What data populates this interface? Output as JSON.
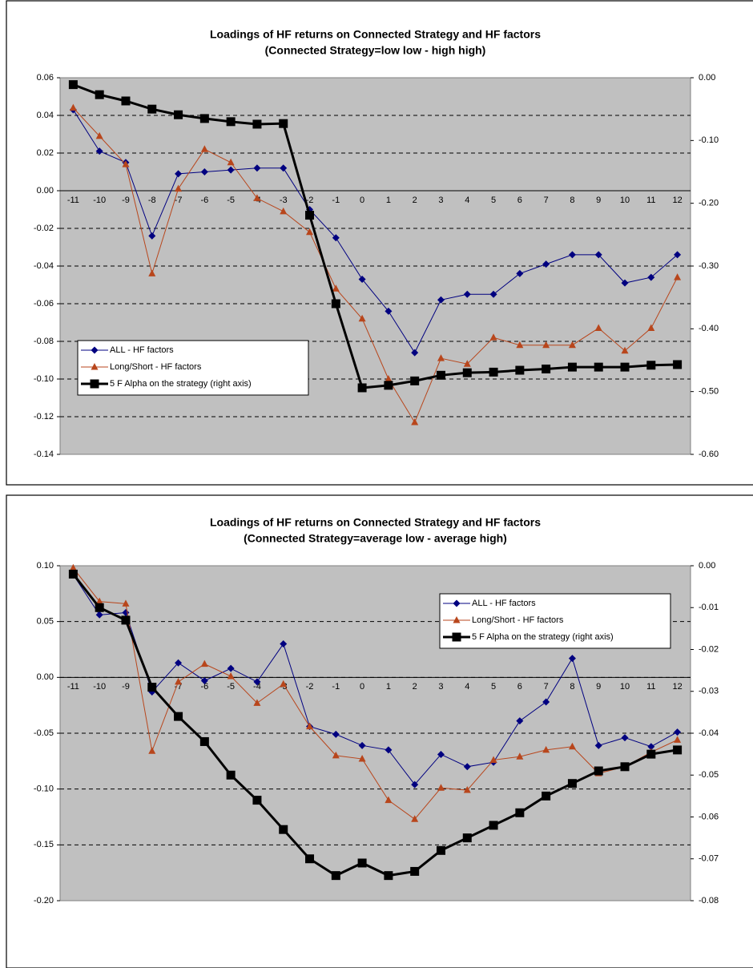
{
  "chart_data": [
    {
      "type": "line",
      "title": "Loadings of HF returns on Connected Strategy and HF factors",
      "subtitle": "(Connected Strategy=low low - high high)",
      "categories": [
        "-11",
        "-10",
        "-9",
        "-8",
        "-7",
        "-6",
        "-5",
        "-4",
        "-3",
        "-2",
        "-1",
        "0",
        "1",
        "2",
        "3",
        "4",
        "5",
        "6",
        "7",
        "8",
        "9",
        "10",
        "11",
        "12"
      ],
      "series": [
        {
          "name": "ALL - HF factors",
          "color": "#000080",
          "marker": "diamond",
          "values": [
            0.043,
            0.021,
            0.015,
            -0.024,
            0.009,
            0.01,
            0.011,
            0.012,
            0.012,
            -0.01,
            -0.025,
            -0.047,
            -0.064,
            -0.086,
            -0.058,
            -0.055,
            -0.055,
            -0.044,
            -0.039,
            -0.034,
            -0.034,
            -0.049,
            -0.046,
            -0.034
          ]
        },
        {
          "name": "Long/Short - HF factors",
          "color": "#b8461c",
          "marker": "triangle",
          "values": [
            0.044,
            0.029,
            0.014,
            -0.044,
            0.001,
            0.022,
            0.015,
            -0.004,
            -0.011,
            -0.022,
            -0.052,
            -0.068,
            -0.1,
            -0.123,
            -0.089,
            -0.092,
            -0.078,
            -0.082,
            -0.082,
            -0.082,
            -0.073,
            -0.085,
            -0.073,
            -0.046
          ]
        },
        {
          "name": "5 F Alpha on the strategy (right axis)",
          "color": "#000000",
          "marker": "square",
          "axis": "y2",
          "values": [
            -0.011,
            -0.027,
            -0.037,
            -0.05,
            -0.059,
            -0.065,
            -0.07,
            -0.074,
            -0.073,
            -0.219,
            -0.36,
            -0.494,
            -0.49,
            -0.483,
            -0.474,
            -0.47,
            -0.469,
            -0.466,
            -0.464,
            -0.461,
            -0.461,
            -0.461,
            -0.458,
            -0.457
          ]
        }
      ],
      "ylim": [
        -0.14,
        0.06
      ],
      "yticks": [
        -0.14,
        -0.12,
        {
          "value": -0.1,
          "label": "-0.10"
        },
        -0.08,
        -0.06,
        -0.04,
        -0.02,
        {
          "value": 0,
          "label": "0.00"
        },
        0.02,
        0.04,
        0.06
      ],
      "y2lim": [
        -0.6,
        0
      ],
      "y2ticks": [
        {
          "value": -0.6,
          "label": "-0.60"
        },
        {
          "value": -0.5,
          "label": "-0.50"
        },
        {
          "value": -0.4,
          "label": "-0.40"
        },
        {
          "value": -0.3,
          "label": "-0.30"
        },
        {
          "value": -0.2,
          "label": "-0.20"
        },
        {
          "value": -0.1,
          "label": "-0.10"
        },
        {
          "value": 0,
          "label": "0.00"
        }
      ],
      "grid": true,
      "legend": "lower left"
    },
    {
      "type": "line",
      "title": "Loadings of HF returns on Connected Strategy and HF factors",
      "subtitle": "(Connected Strategy=average low - average high)",
      "categories": [
        "-11",
        "-10",
        "-9",
        "-8",
        "-7",
        "-6",
        "-5",
        "-4",
        "-3",
        "-2",
        "-1",
        "0",
        "1",
        "2",
        "3",
        "4",
        "5",
        "6",
        "7",
        "8",
        "9",
        "10",
        "11",
        "12"
      ],
      "series": [
        {
          "name": "ALL - HF factors",
          "color": "#000080",
          "marker": "diamond",
          "values": [
            0.092,
            0.056,
            0.058,
            -0.013,
            0.013,
            -0.003,
            0.008,
            -0.004,
            0.03,
            -0.044,
            -0.051,
            -0.061,
            -0.065,
            -0.096,
            -0.069,
            -0.08,
            -0.076,
            -0.039,
            -0.022,
            0.017,
            -0.061,
            -0.054,
            -0.062,
            -0.049
          ]
        },
        {
          "name": "Long/Short - HF factors",
          "color": "#b8461c",
          "marker": "triangle",
          "values": [
            0.098,
            0.068,
            0.066,
            -0.066,
            -0.004,
            0.012,
            0.001,
            -0.023,
            -0.006,
            -0.044,
            -0.07,
            -0.073,
            -0.11,
            -0.127,
            -0.099,
            -0.101,
            -0.074,
            -0.071,
            -0.065,
            -0.062,
            -0.086,
            -0.08,
            -0.067,
            -0.056
          ]
        },
        {
          "name": "5 F Alpha on the strategy (right axis)",
          "color": "#000000",
          "marker": "square",
          "axis": "y2",
          "values": [
            -0.002,
            -0.01,
            -0.013,
            -0.029,
            -0.036,
            -0.042,
            -0.05,
            -0.056,
            -0.063,
            -0.07,
            -0.074,
            -0.071,
            -0.074,
            -0.073,
            -0.068,
            -0.065,
            -0.062,
            -0.059,
            -0.055,
            -0.052,
            -0.049,
            -0.048,
            -0.045,
            -0.044
          ]
        }
      ],
      "ylim": [
        -0.2,
        0.1
      ],
      "yticks": [
        {
          "value": -0.2,
          "label": "-0.20"
        },
        -0.15,
        {
          "value": -0.1,
          "label": "-0.10"
        },
        -0.05,
        {
          "value": 0,
          "label": "0.00"
        },
        0.05,
        {
          "value": 0.1,
          "label": "0.10"
        }
      ],
      "y2lim": [
        -0.08,
        0
      ],
      "y2ticks": [
        -0.08,
        -0.07,
        -0.06,
        -0.05,
        -0.04,
        -0.03,
        -0.02,
        -0.01,
        {
          "value": 0,
          "label": "0.00"
        }
      ],
      "grid": true,
      "legend": "upper right"
    }
  ]
}
